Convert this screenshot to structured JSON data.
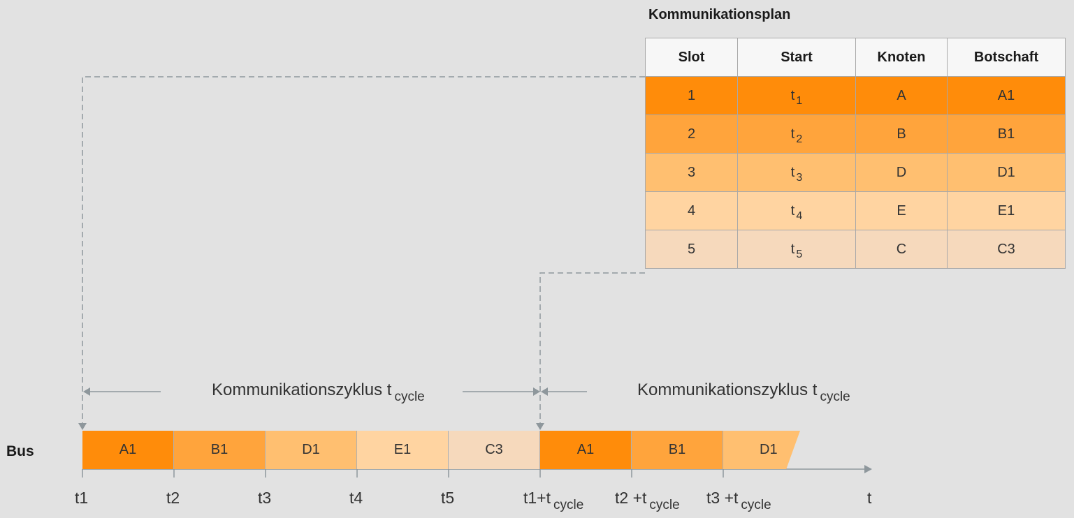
{
  "plan": {
    "title": "Kommunikationsplan",
    "headers": [
      "Slot",
      "Start",
      "Knoten",
      "Botschaft"
    ],
    "rows": [
      {
        "slot": "1",
        "start": "t",
        "start_sub": "1",
        "node": "A",
        "msg": "A1",
        "color": "#ff8c0a"
      },
      {
        "slot": "2",
        "start": "t",
        "start_sub": "2",
        "node": "B",
        "msg": "B1",
        "color": "#ffa43c"
      },
      {
        "slot": "3",
        "start": "t",
        "start_sub": "3",
        "node": "D",
        "msg": "D1",
        "color": "#ffbf70"
      },
      {
        "slot": "4",
        "start": "t",
        "start_sub": "4",
        "node": "E",
        "msg": "E1",
        "color": "#ffd4a1"
      },
      {
        "slot": "5",
        "start": "t",
        "start_sub": "5",
        "node": "C",
        "msg": "C3",
        "color": "#f6d9bc"
      }
    ]
  },
  "bus": {
    "label": "Bus",
    "segments": [
      {
        "label": "A1",
        "color": "#ff8c0a"
      },
      {
        "label": "B1",
        "color": "#ffa43c"
      },
      {
        "label": "D1",
        "color": "#ffbf70"
      },
      {
        "label": "E1",
        "color": "#ffd4a1"
      },
      {
        "label": "C3",
        "color": "#f6d9bc"
      },
      {
        "label": "A1",
        "color": "#ff8c0a"
      },
      {
        "label": "B1",
        "color": "#ffa43c"
      },
      {
        "label": "D1",
        "color": "#ffbf70"
      }
    ]
  },
  "cycles": [
    {
      "text": "Kommunikationszyklus t",
      "sub": "cycle"
    },
    {
      "text": "Kommunikationszyklus t",
      "sub": "cycle"
    }
  ],
  "ticks": [
    {
      "text": "t1",
      "sub": ""
    },
    {
      "text": "t2",
      "sub": ""
    },
    {
      "text": "t3",
      "sub": ""
    },
    {
      "text": "t4",
      "sub": ""
    },
    {
      "text": "t5",
      "sub": ""
    },
    {
      "text": "t1+t",
      "sub": "cycle"
    },
    {
      "text": "t2 +t",
      "sub": "cycle"
    },
    {
      "text": "t3 +t",
      "sub": "cycle"
    },
    {
      "text": "t",
      "sub": ""
    }
  ],
  "colors": {
    "line": "#8e979c",
    "border": "#a9a9a9"
  }
}
